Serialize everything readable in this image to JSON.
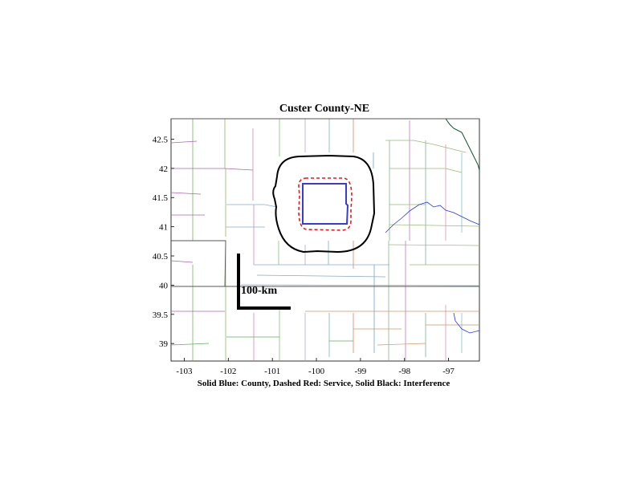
{
  "map": {
    "title": "Custer County-NE",
    "caption": "Solid Blue: County, Dashed Red: Service, Solid Black: Interference",
    "scale_bar_label": "100-km",
    "x_axis": {
      "label": "",
      "range": [
        -103.3,
        -96.3
      ],
      "ticks": [
        {
          "value": -103,
          "label": "-103"
        },
        {
          "value": -102,
          "label": "-102"
        },
        {
          "value": -101,
          "label": "-101"
        },
        {
          "value": -100,
          "label": "-100"
        },
        {
          "value": -99,
          "label": "-99"
        },
        {
          "value": -98,
          "label": "-98"
        },
        {
          "value": -97,
          "label": "-97"
        }
      ]
    },
    "y_axis": {
      "label": "",
      "range": [
        38.7,
        42.85
      ],
      "ticks": [
        {
          "value": 42.5,
          "label": "42.5"
        },
        {
          "value": 42,
          "label": "42"
        },
        {
          "value": 41.5,
          "label": "41.5"
        },
        {
          "value": 41,
          "label": "41"
        },
        {
          "value": 40.5,
          "label": "40.5"
        },
        {
          "value": 40,
          "label": "40"
        },
        {
          "value": 39.5,
          "label": "39.5"
        },
        {
          "value": 39,
          "label": "39"
        }
      ]
    },
    "colors": {
      "county": "#3a3ad8",
      "service": "#e81a1a",
      "interference": "#000000",
      "state_line": "#555555"
    }
  }
}
